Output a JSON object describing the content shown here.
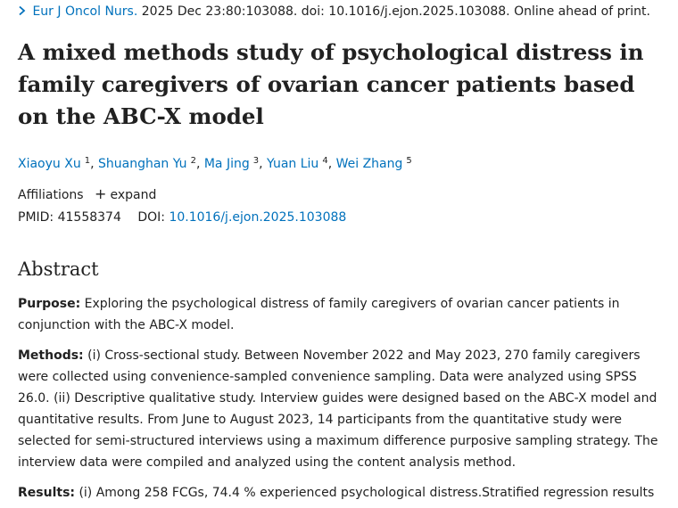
{
  "citation": {
    "journal": "Eur J Oncol Nurs.",
    "rest": " 2025 Dec 23:80:103088. doi: 10.1016/j.ejon.2025.103088. Online ahead of print."
  },
  "article": {
    "title": "A mixed methods study of psychological distress in family caregivers of ovarian cancer patients based on the ABC-X model"
  },
  "authors": [
    {
      "name": "Xiaoyu Xu",
      "sup": "1"
    },
    {
      "name": "Shuanghan Yu",
      "sup": "2"
    },
    {
      "name": "Ma Jing",
      "sup": "3"
    },
    {
      "name": "Yuan Liu",
      "sup": "4"
    },
    {
      "name": "Wei Zhang",
      "sup": "5"
    }
  ],
  "affiliations": {
    "label": "Affiliations",
    "toggle_icon": "+",
    "toggle_label": "expand"
  },
  "ids": {
    "pmid_label": "PMID:",
    "pmid": "41558374",
    "doi_label": "DOI:",
    "doi": "10.1016/j.ejon.2025.103088"
  },
  "abstract": {
    "heading": "Abstract",
    "sections": [
      {
        "label": "Purpose:",
        "text": " Exploring the psychological distress of family caregivers of ovarian cancer patients in conjunction with the ABC-X model."
      },
      {
        "label": "Methods:",
        "text": " (i) Cross-sectional study. Between November 2022 and May 2023, 270 family caregivers were collected using convenience-sampled convenience sampling. Data were analyzed using SPSS 26.0. (ii) Descriptive qualitative study. Interview guides were designed based on the ABC-X model and quantitative results. From June to August 2023, 14 participants from the quantitative study were selected for semi-structured interviews using a maximum difference purposive sampling strategy. The interview data were compiled and analyzed using the content analysis method."
      },
      {
        "label": "Results:",
        "text": " (i) Among 258 FCGs, 74.4 % experienced psychological distress.Stratified regression results"
      }
    ]
  }
}
